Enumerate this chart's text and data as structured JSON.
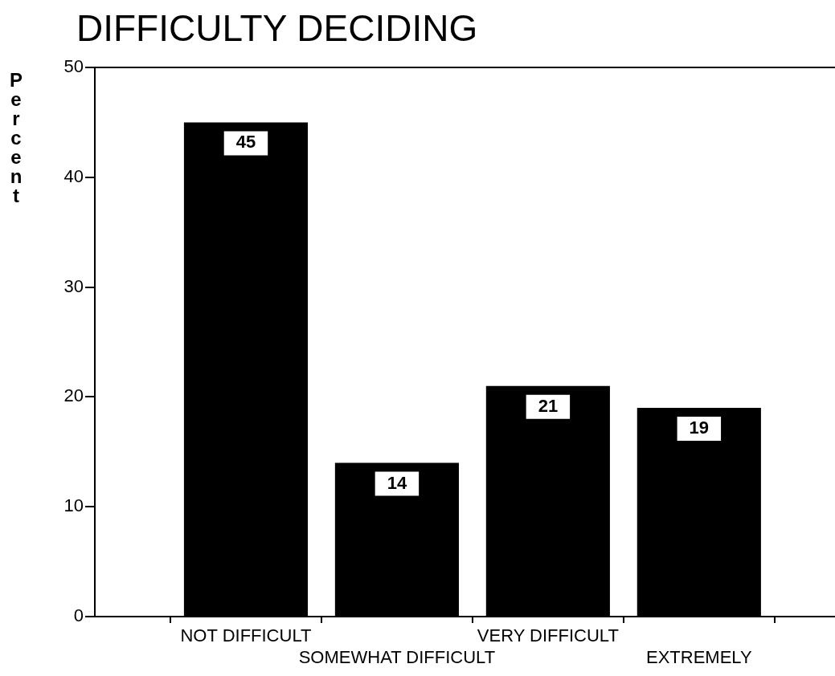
{
  "chart_data": {
    "type": "bar",
    "title": "DIFFICULTY DECIDING",
    "ylabel": "Percent",
    "categories": [
      "NOT DIFFICULT",
      "SOMEWHAT DIFFICULT",
      "VERY DIFFICULT",
      "EXTREMELY"
    ],
    "values": [
      45,
      14,
      21,
      19
    ],
    "color": "#000000",
    "ylim": [
      0,
      50
    ],
    "yticks": [
      0,
      10,
      20,
      30,
      40,
      50
    ],
    "data_labels": true,
    "grid": false,
    "legend": false
  }
}
